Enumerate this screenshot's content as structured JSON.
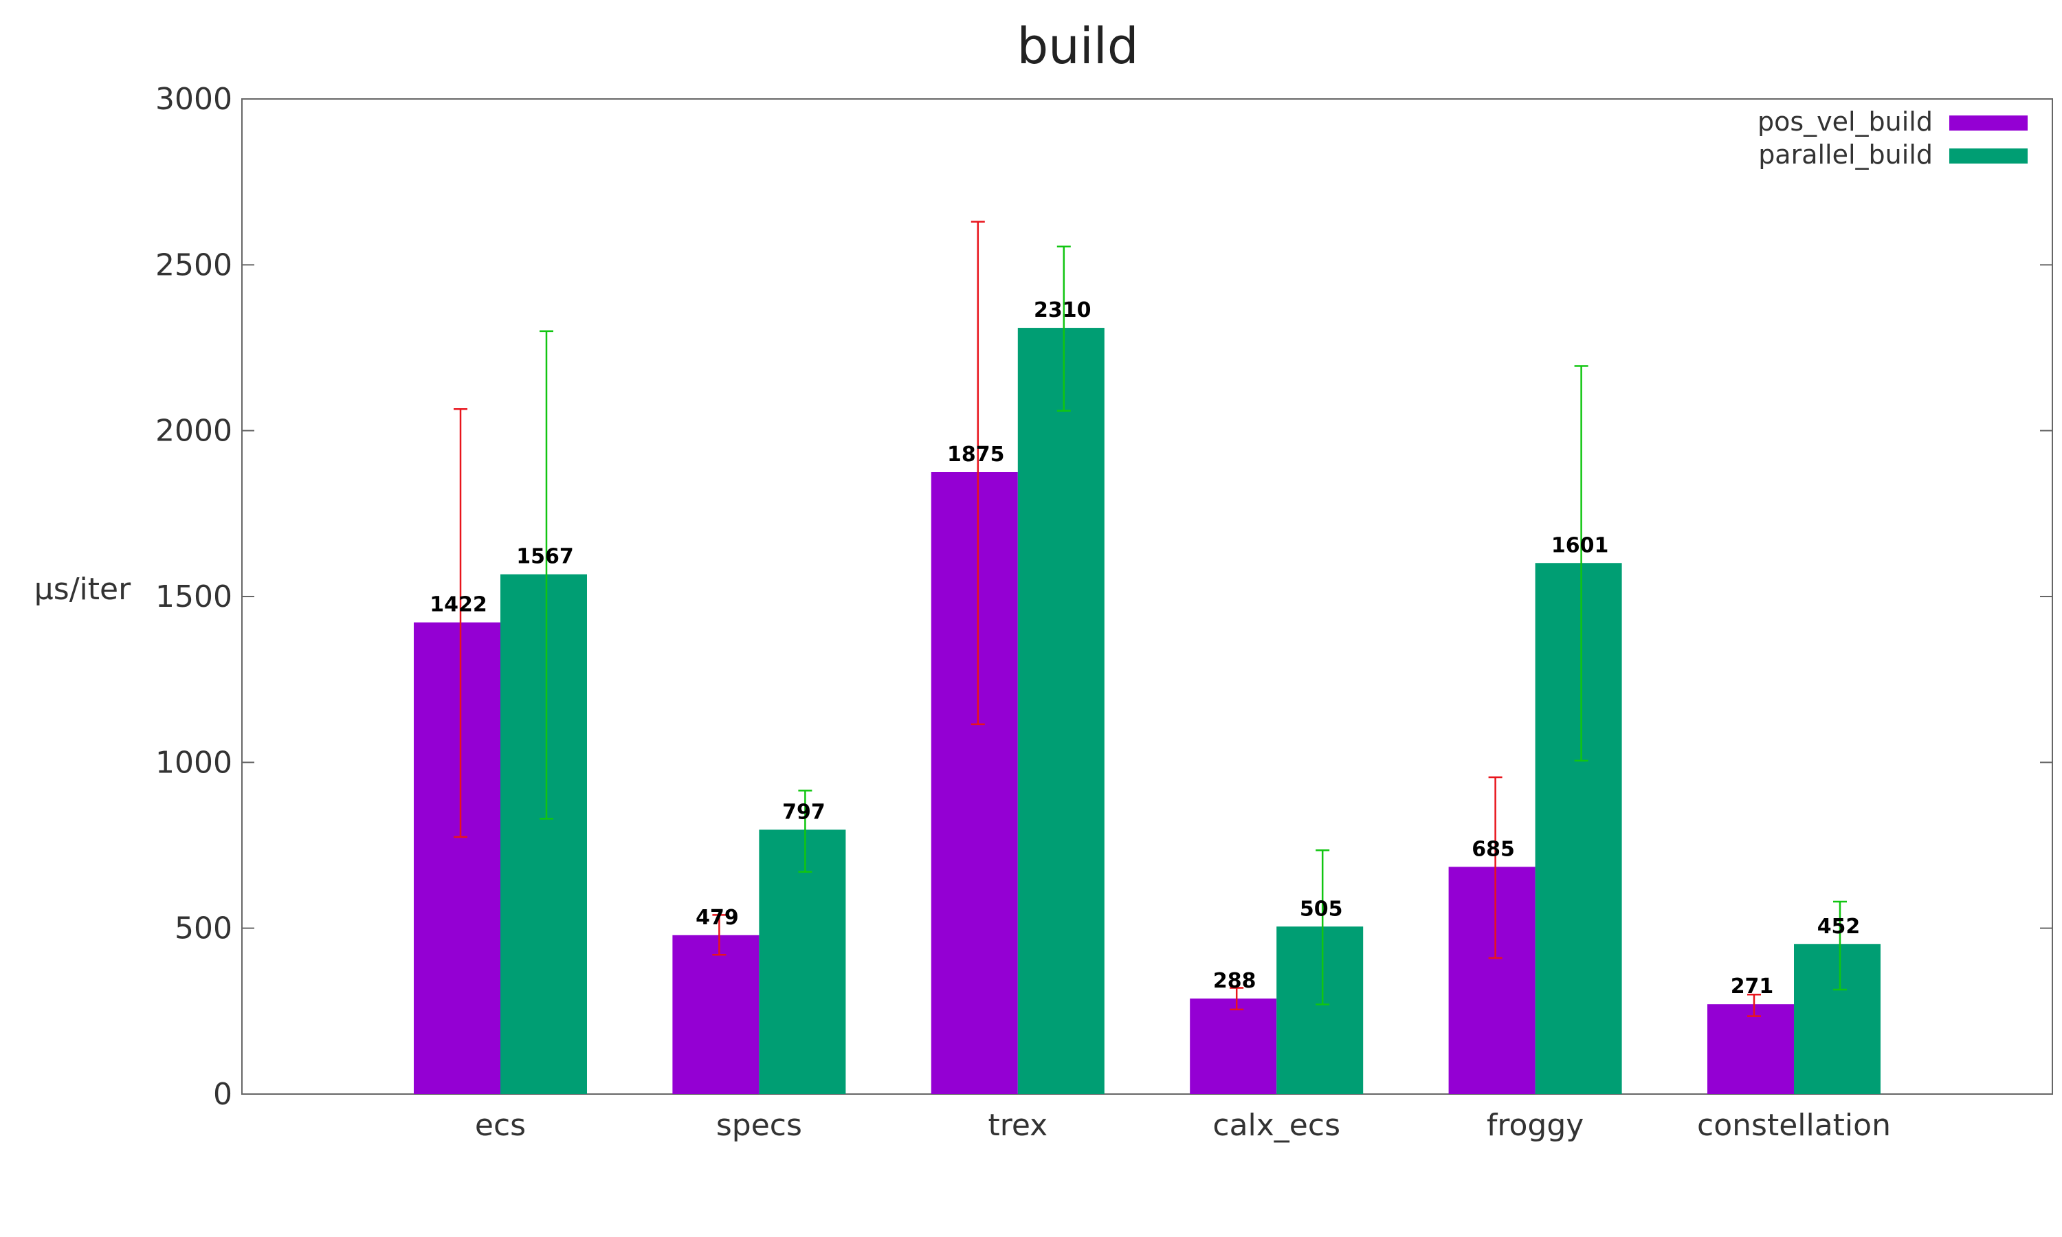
{
  "chart_data": {
    "type": "bar",
    "title": "build",
    "ylabel": "μs/iter",
    "xlabel": "",
    "ylim": [
      0,
      3000
    ],
    "yticks": [
      0,
      500,
      1000,
      1500,
      2000,
      2500,
      3000
    ],
    "categories": [
      "ecs",
      "specs",
      "trex",
      "calx_ecs",
      "froggy",
      "constellation"
    ],
    "legend_position": "top-right",
    "grid": false,
    "series": [
      {
        "name": "pos_vel_build",
        "color": "#9400d3",
        "error_color": "#e8141c",
        "values": [
          1422,
          479,
          1875,
          288,
          685,
          271
        ],
        "error_low": [
          775,
          420,
          1115,
          255,
          410,
          235
        ],
        "error_high": [
          2065,
          540,
          2630,
          320,
          955,
          300
        ]
      },
      {
        "name": "parallel_build",
        "color": "#009e73",
        "error_color": "#11c511",
        "values": [
          1567,
          797,
          2310,
          505,
          1601,
          452
        ],
        "error_low": [
          830,
          670,
          2060,
          270,
          1005,
          315
        ],
        "error_high": [
          2300,
          915,
          2555,
          735,
          2195,
          580
        ]
      }
    ]
  }
}
